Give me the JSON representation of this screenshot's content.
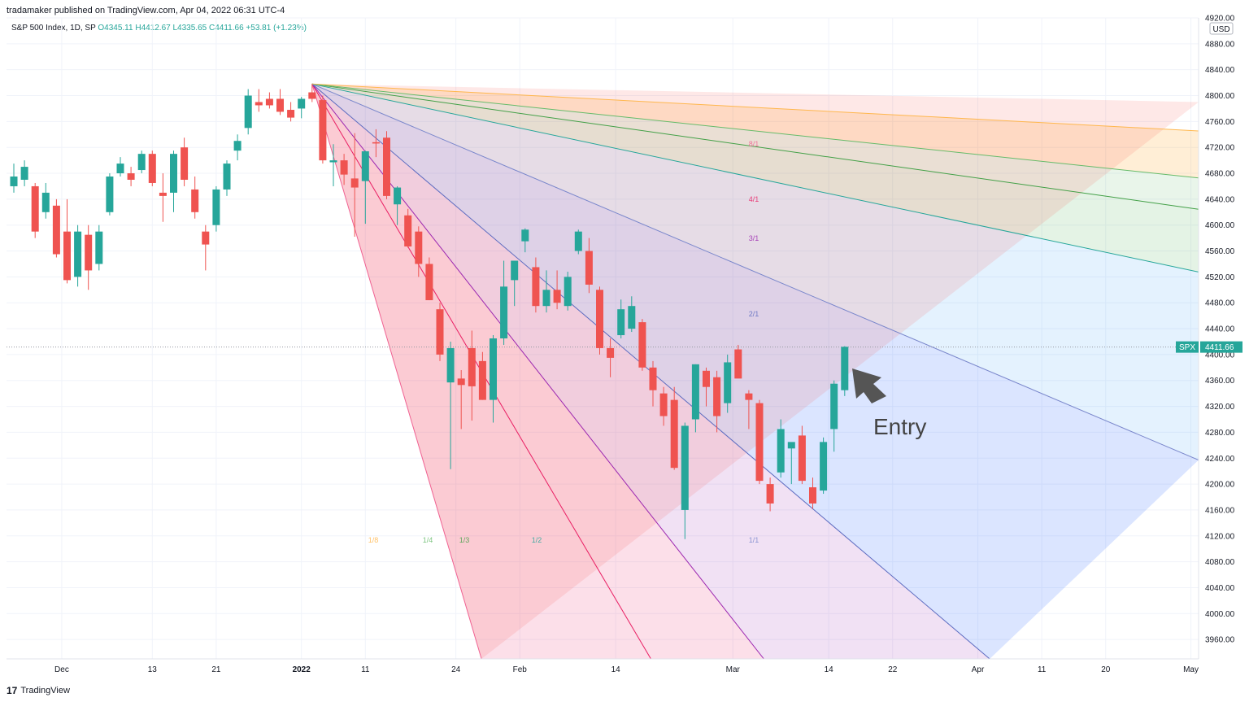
{
  "header": {
    "publisher": "tradamaker published on TradingView.com, Apr 04, 2022 06:31 UTC-4",
    "symbol_desc": "S&P 500 Index, 1D, SP",
    "open": "O4345.11",
    "high": "H4412.67",
    "low": "L4335.65",
    "close": "C4411.66",
    "change": "+53.81 (+1.23%)"
  },
  "footer": {
    "brand": "TradingView",
    "logo": "17"
  },
  "colors": {
    "up": "#26a69a",
    "down": "#ef5350",
    "grid": "#f0f3fa",
    "axis": "#e0e3eb"
  },
  "chart_data": {
    "type": "candlestick",
    "currency": "USD",
    "last_price": {
      "symbol": "SPX",
      "value": "4411.66"
    },
    "ylim": [
      3930,
      4920
    ],
    "y_ticks": [
      3960,
      4000,
      4040,
      4080,
      4120,
      4160,
      4200,
      4240,
      4280,
      4320,
      4360,
      4400,
      4440,
      4480,
      4520,
      4560,
      4600,
      4640,
      4680,
      4720,
      4760,
      4800,
      4840,
      4880,
      4920
    ],
    "x_ticks": [
      {
        "label": "Dec",
        "bar": 4.5
      },
      {
        "label": "13",
        "bar": 13
      },
      {
        "label": "21",
        "bar": 19
      },
      {
        "label": "2022",
        "bar": 27
      },
      {
        "label": "11",
        "bar": 33
      },
      {
        "label": "24",
        "bar": 41.5
      },
      {
        "label": "Feb",
        "bar": 47.5
      },
      {
        "label": "14",
        "bar": 56.5
      },
      {
        "label": "Mar",
        "bar": 67.5
      },
      {
        "label": "14",
        "bar": 76.5
      },
      {
        "label": "22",
        "bar": 82.5
      },
      {
        "label": "Apr",
        "bar": 90.5
      },
      {
        "label": "11",
        "bar": 96.5
      },
      {
        "label": "20",
        "bar": 102.5
      },
      {
        "label": "May",
        "bar": 110.5
      }
    ],
    "candles": [
      {
        "o": 4660,
        "h": 4695,
        "l": 4650,
        "c": 4675
      },
      {
        "o": 4670,
        "h": 4700,
        "l": 4660,
        "c": 4690
      },
      {
        "o": 4660,
        "h": 4665,
        "l": 4580,
        "c": 4590
      },
      {
        "o": 4620,
        "h": 4665,
        "l": 4610,
        "c": 4650
      },
      {
        "o": 4630,
        "h": 4640,
        "l": 4550,
        "c": 4555
      },
      {
        "o": 4590,
        "h": 4640,
        "l": 4510,
        "c": 4515
      },
      {
        "o": 4520,
        "h": 4600,
        "l": 4505,
        "c": 4590
      },
      {
        "o": 4585,
        "h": 4600,
        "l": 4500,
        "c": 4530
      },
      {
        "o": 4540,
        "h": 4600,
        "l": 4530,
        "c": 4590
      },
      {
        "o": 4620,
        "h": 4680,
        "l": 4615,
        "c": 4675
      },
      {
        "o": 4680,
        "h": 4705,
        "l": 4675,
        "c": 4695
      },
      {
        "o": 4680,
        "h": 4690,
        "l": 4660,
        "c": 4670
      },
      {
        "o": 4685,
        "h": 4715,
        "l": 4680,
        "c": 4710
      },
      {
        "o": 4710,
        "h": 4715,
        "l": 4660,
        "c": 4665
      },
      {
        "o": 4650,
        "h": 4680,
        "l": 4605,
        "c": 4645
      },
      {
        "o": 4650,
        "h": 4715,
        "l": 4620,
        "c": 4710
      },
      {
        "o": 4720,
        "h": 4735,
        "l": 4660,
        "c": 4670
      },
      {
        "o": 4655,
        "h": 4675,
        "l": 4610,
        "c": 4620
      },
      {
        "o": 4590,
        "h": 4600,
        "l": 4530,
        "c": 4570
      },
      {
        "o": 4600,
        "h": 4660,
        "l": 4590,
        "c": 4655
      },
      {
        "o": 4655,
        "h": 4700,
        "l": 4645,
        "c": 4695
      },
      {
        "o": 4715,
        "h": 4740,
        "l": 4700,
        "c": 4730
      },
      {
        "o": 4750,
        "h": 4810,
        "l": 4740,
        "c": 4800
      },
      {
        "o": 4790,
        "h": 4810,
        "l": 4775,
        "c": 4785
      },
      {
        "o": 4795,
        "h": 4805,
        "l": 4780,
        "c": 4785
      },
      {
        "o": 4795,
        "h": 4810,
        "l": 4770,
        "c": 4775
      },
      {
        "o": 4778,
        "h": 4790,
        "l": 4760,
        "c": 4766
      },
      {
        "o": 4780,
        "h": 4798,
        "l": 4765,
        "c": 4795
      },
      {
        "o": 4805,
        "h": 4818,
        "l": 4790,
        "c": 4795
      },
      {
        "o": 4793,
        "h": 4800,
        "l": 4695,
        "c": 4700
      },
      {
        "o": 4697,
        "h": 4725,
        "l": 4660,
        "c": 4700
      },
      {
        "o": 4700,
        "h": 4710,
        "l": 4662,
        "c": 4678
      },
      {
        "o": 4672,
        "h": 4742,
        "l": 4582,
        "c": 4658
      },
      {
        "o": 4668,
        "h": 4715,
        "l": 4602,
        "c": 4714
      },
      {
        "o": 4728,
        "h": 4748,
        "l": 4705,
        "c": 4726
      },
      {
        "o": 4735,
        "h": 4745,
        "l": 4640,
        "c": 4645
      },
      {
        "o": 4632,
        "h": 4660,
        "l": 4600,
        "c": 4658
      },
      {
        "o": 4615,
        "h": 4625,
        "l": 4565,
        "c": 4567
      },
      {
        "o": 4590,
        "h": 4598,
        "l": 4520,
        "c": 4540
      },
      {
        "o": 4540,
        "h": 4550,
        "l": 4484,
        "c": 4484
      },
      {
        "o": 4470,
        "h": 4480,
        "l": 4390,
        "c": 4400
      },
      {
        "o": 4357,
        "h": 4420,
        "l": 4223,
        "c": 4410
      },
      {
        "o": 4363,
        "h": 4376,
        "l": 4285,
        "c": 4353
      },
      {
        "o": 4410,
        "h": 4437,
        "l": 4298,
        "c": 4351
      },
      {
        "o": 4390,
        "h": 4404,
        "l": 4330,
        "c": 4330
      },
      {
        "o": 4330,
        "h": 4430,
        "l": 4295,
        "c": 4425
      },
      {
        "o": 4425,
        "h": 4545,
        "l": 4415,
        "c": 4505
      },
      {
        "o": 4515,
        "h": 4545,
        "l": 4475,
        "c": 4545
      },
      {
        "o": 4575,
        "h": 4595,
        "l": 4558,
        "c": 4593
      },
      {
        "o": 4535,
        "h": 4550,
        "l": 4465,
        "c": 4475
      },
      {
        "o": 4475,
        "h": 4530,
        "l": 4465,
        "c": 4500
      },
      {
        "o": 4500,
        "h": 4530,
        "l": 4470,
        "c": 4480
      },
      {
        "o": 4475,
        "h": 4528,
        "l": 4468,
        "c": 4520
      },
      {
        "o": 4560,
        "h": 4593,
        "l": 4555,
        "c": 4590
      },
      {
        "o": 4560,
        "h": 4580,
        "l": 4495,
        "c": 4508
      },
      {
        "o": 4500,
        "h": 4505,
        "l": 4400,
        "c": 4410
      },
      {
        "o": 4410,
        "h": 4425,
        "l": 4365,
        "c": 4395
      },
      {
        "o": 4430,
        "h": 4485,
        "l": 4425,
        "c": 4470
      },
      {
        "o": 4440,
        "h": 4490,
        "l": 4435,
        "c": 4475
      },
      {
        "o": 4450,
        "h": 4455,
        "l": 4375,
        "c": 4380
      },
      {
        "o": 4380,
        "h": 4390,
        "l": 4320,
        "c": 4345
      },
      {
        "o": 4340,
        "h": 4350,
        "l": 4290,
        "c": 4305
      },
      {
        "o": 4330,
        "h": 4350,
        "l": 4222,
        "c": 4225
      },
      {
        "o": 4160,
        "h": 4295,
        "l": 4115,
        "c": 4290
      },
      {
        "o": 4300,
        "h": 4385,
        "l": 4280,
        "c": 4385
      },
      {
        "o": 4375,
        "h": 4380,
        "l": 4320,
        "c": 4350
      },
      {
        "o": 4365,
        "h": 4375,
        "l": 4280,
        "c": 4305
      },
      {
        "o": 4325,
        "h": 4400,
        "l": 4310,
        "c": 4388
      },
      {
        "o": 4408,
        "h": 4415,
        "l": 4365,
        "c": 4363
      },
      {
        "o": 4340,
        "h": 4345,
        "l": 4285,
        "c": 4330
      },
      {
        "o": 4325,
        "h": 4330,
        "l": 4200,
        "c": 4205
      },
      {
        "o": 4200,
        "h": 4210,
        "l": 4158,
        "c": 4170
      },
      {
        "o": 4218,
        "h": 4300,
        "l": 4210,
        "c": 4285
      },
      {
        "o": 4255,
        "h": 4260,
        "l": 4200,
        "c": 4265
      },
      {
        "o": 4275,
        "h": 4290,
        "l": 4200,
        "c": 4205
      },
      {
        "o": 4195,
        "h": 4210,
        "l": 4162,
        "c": 4170
      },
      {
        "o": 4190,
        "h": 4272,
        "l": 4185,
        "c": 4265
      },
      {
        "o": 4285,
        "h": 4360,
        "l": 4250,
        "c": 4355
      },
      {
        "o": 4345,
        "h": 4413,
        "l": 4336,
        "c": 4412
      }
    ],
    "fan": {
      "origin": {
        "bar": 28,
        "price": 4818
      },
      "unit_price_per_bar": 6.98,
      "lines": [
        {
          "label": "8/1",
          "ratio": 8,
          "color": "#f06292",
          "fill": "rgba(244,67,54,0.12)"
        },
        {
          "label": "4/1",
          "ratio": 4,
          "color": "#e91e63",
          "fill": "rgba(233,30,99,0.14)"
        },
        {
          "label": "3/1",
          "ratio": 3,
          "color": "#9c27b0",
          "fill": "rgba(233,30,99,0.14)"
        },
        {
          "label": "2/1",
          "ratio": 2,
          "color": "#5c6bc0",
          "fill": "rgba(156,39,176,0.14)"
        },
        {
          "label": "1/1",
          "ratio": 1,
          "color": "#7986cb",
          "fill": "rgba(41,98,255,0.17)"
        },
        {
          "label": "1/2",
          "ratio": 0.5,
          "color": "#26a69a",
          "fill": "rgba(33,150,243,0.12)"
        },
        {
          "label": "1/3",
          "ratio": 0.3333,
          "color": "#43a047",
          "fill": "rgba(76,175,80,0.15)"
        },
        {
          "label": "1/4",
          "ratio": 0.25,
          "color": "#66bb6a",
          "fill": "rgba(76,175,80,0.12)"
        },
        {
          "label": "1/8",
          "ratio": 0.125,
          "color": "#ffb74d",
          "fill": "rgba(255,152,0,0.16)"
        }
      ]
    },
    "annotation": {
      "text": "Entry"
    }
  }
}
